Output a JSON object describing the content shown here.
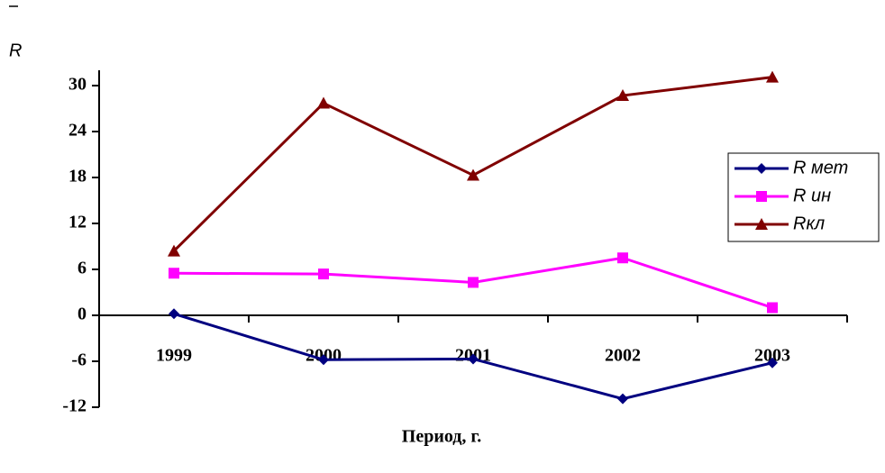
{
  "chart_data": {
    "type": "line",
    "x_label": "Период, г.",
    "y_label": "R",
    "categories": [
      "1999",
      "2000",
      "2001",
      "2002",
      "2003"
    ],
    "series": [
      {
        "name": "R мет",
        "color": "#000080",
        "marker": "diamond",
        "values": [
          0.2,
          -5.8,
          -5.7,
          -10.9,
          -6.2
        ]
      },
      {
        "name": "R ин",
        "color": "#ff00ff",
        "marker": "square",
        "values": [
          5.5,
          5.4,
          4.3,
          7.5,
          1.0
        ]
      },
      {
        "name": "Rкл",
        "color": "#800000",
        "marker": "triangle",
        "values": [
          8.4,
          27.7,
          18.3,
          28.7,
          31.1
        ]
      }
    ],
    "ylim": [
      -12,
      32
    ],
    "yticks": [
      -12,
      -6,
      0,
      6,
      12,
      18,
      24,
      30
    ],
    "grid": false,
    "legend": "right"
  }
}
